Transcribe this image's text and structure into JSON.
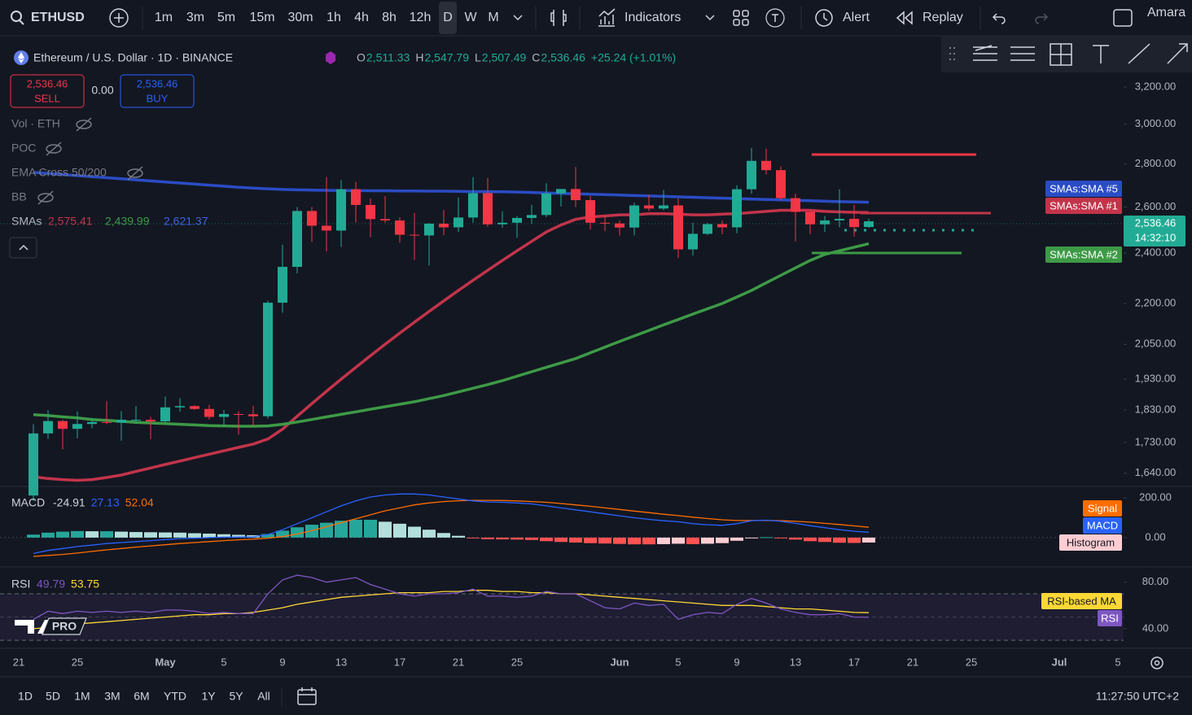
{
  "toolbar": {
    "symbol": "ETHUSD",
    "intervals": [
      "1m",
      "3m",
      "5m",
      "15m",
      "30m",
      "1h",
      "4h",
      "8h",
      "12h",
      "D",
      "W",
      "M"
    ],
    "indicators": "Indicators",
    "alert": "Alert",
    "replay": "Replay",
    "user": "Amara"
  },
  "header": {
    "title": "Ethereum / U.S. Dollar · 1D · BINANCE",
    "ohlc": [
      {
        "key": "O",
        "text": "2,511.33"
      },
      {
        "key": "H",
        "text": "2,547.79"
      },
      {
        "key": "L",
        "text": "2,507.49"
      },
      {
        "key": "C",
        "text": "2,536.46"
      }
    ],
    "change": "+25.24 (+1.01%)"
  },
  "trade": {
    "sell_price": "2,536.46",
    "sell": "SELL",
    "spread": "0.00",
    "buy_price": "2,536.46",
    "buy": "BUY"
  },
  "legend": {
    "vol": "Vol · ETH",
    "poc": "POC",
    "ema": "EMA Cross 50/200",
    "bb": "BB",
    "smas": "SMAs",
    "sma_values": [
      "2,575.41",
      "2,439.99",
      "2,621.37"
    ]
  },
  "logo": "PRO",
  "price": {
    "type": "candlestick",
    "log": true,
    "ylim": [
      1603,
      3268
    ],
    "yticks": [
      {
        "value": 3200,
        "label": "3,200.00"
      },
      {
        "value": 3000,
        "label": "3,000.00"
      },
      {
        "value": 2800,
        "label": "2,800.00"
      },
      {
        "value": 2600,
        "label": "2,600.00"
      },
      {
        "value": 2400,
        "label": "2,400.00"
      },
      {
        "value": 2200,
        "label": "2,200.00"
      },
      {
        "value": 2050,
        "label": "2,050.00"
      },
      {
        "value": 1930,
        "label": "1,930.00"
      },
      {
        "value": 1830,
        "label": "1,830.00"
      },
      {
        "value": 1730,
        "label": "1,730.00"
      },
      {
        "value": 1640,
        "label": "1,640.00"
      }
    ],
    "up_color": "#22ab94",
    "down_color": "#f23645",
    "candles": [
      [
        1578,
        1785,
        1563,
        1757
      ],
      [
        1757,
        1829,
        1740,
        1795
      ],
      [
        1795,
        1799,
        1709,
        1771
      ],
      [
        1771,
        1825,
        1742,
        1786
      ],
      [
        1786,
        1805,
        1773,
        1792
      ],
      [
        1792,
        1858,
        1785,
        1790
      ],
      [
        1790,
        1826,
        1735,
        1799
      ],
      [
        1799,
        1842,
        1788,
        1799
      ],
      [
        1799,
        1808,
        1740,
        1794
      ],
      [
        1794,
        1873,
        1790,
        1838
      ],
      [
        1838,
        1868,
        1824,
        1842
      ],
      [
        1842,
        1845,
        1830,
        1833
      ],
      [
        1833,
        1846,
        1800,
        1808
      ],
      [
        1808,
        1830,
        1780,
        1817
      ],
      [
        1817,
        1826,
        1753,
        1816
      ],
      [
        1816,
        1843,
        1781,
        1810
      ],
      [
        1810,
        2211,
        1803,
        2203
      ],
      [
        2203,
        2436,
        2165,
        2344
      ],
      [
        2344,
        2600,
        2318,
        2582
      ],
      [
        2582,
        2600,
        2448,
        2517
      ],
      [
        2517,
        2738,
        2407,
        2496
      ],
      [
        2496,
        2724,
        2426,
        2681
      ],
      [
        2681,
        2716,
        2531,
        2609
      ],
      [
        2609,
        2639,
        2468,
        2546
      ],
      [
        2546,
        2649,
        2530,
        2540
      ],
      [
        2540,
        2554,
        2444,
        2478
      ],
      [
        2478,
        2573,
        2372,
        2475
      ],
      [
        2475,
        2528,
        2350,
        2526
      ],
      [
        2526,
        2587,
        2476,
        2510
      ],
      [
        2510,
        2643,
        2490,
        2553
      ],
      [
        2553,
        2738,
        2530,
        2663
      ],
      [
        2663,
        2734,
        2512,
        2523
      ],
      [
        2523,
        2580,
        2508,
        2530
      ],
      [
        2530,
        2560,
        2465,
        2551
      ],
      [
        2551,
        2610,
        2526,
        2564
      ],
      [
        2564,
        2709,
        2555,
        2662
      ],
      [
        2662,
        2681,
        2602,
        2682
      ],
      [
        2682,
        2786,
        2600,
        2631
      ],
      [
        2631,
        2650,
        2500,
        2530
      ],
      [
        2530,
        2560,
        2493,
        2527
      ],
      [
        2527,
        2540,
        2474,
        2509
      ],
      [
        2509,
        2620,
        2475,
        2607
      ],
      [
        2607,
        2656,
        2581,
        2593
      ],
      [
        2593,
        2678,
        2585,
        2607
      ],
      [
        2607,
        2638,
        2380,
        2416
      ],
      [
        2416,
        2530,
        2390,
        2482
      ],
      [
        2482,
        2530,
        2476,
        2524
      ],
      [
        2524,
        2540,
        2480,
        2510
      ],
      [
        2510,
        2700,
        2485,
        2681
      ],
      [
        2681,
        2880,
        2660,
        2816
      ],
      [
        2816,
        2876,
        2750,
        2771
      ],
      [
        2771,
        2790,
        2629,
        2640
      ],
      [
        2640,
        2660,
        2450,
        2578
      ],
      [
        2578,
        2580,
        2480,
        2523
      ],
      [
        2523,
        2560,
        2490,
        2540
      ],
      [
        2540,
        2680,
        2510,
        2547
      ],
      [
        2547,
        2610,
        2470,
        2511
      ],
      [
        2511.33,
        2547.79,
        2507.49,
        2536.46
      ]
    ],
    "sma": [
      {
        "name": "SMAs:SMA #1",
        "color": "#c2344a",
        "values": [
          1630,
          1625,
          1622,
          1620,
          1622,
          1628,
          1635,
          1645,
          1655,
          1665,
          1675,
          1685,
          1695,
          1705,
          1715,
          1725,
          1740,
          1770,
          1810,
          1850,
          1890,
          1930,
          1970,
          2010,
          2050,
          2090,
          2130,
          2170,
          2210,
          2250,
          2290,
          2330,
          2370,
          2410,
          2450,
          2490,
          2520,
          2545,
          2555,
          2560,
          2565,
          2565,
          2570,
          2570,
          2568,
          2565,
          2565,
          2568,
          2570,
          2575,
          2580,
          2585,
          2585,
          2585,
          2580,
          2578,
          2576,
          2575.41
        ]
      },
      {
        "name": "SMAs:SMA #2",
        "color": "#3d9a46",
        "values": [
          1815,
          1812,
          1808,
          1805,
          1800,
          1797,
          1794,
          1791,
          1789,
          1787,
          1785,
          1783,
          1781,
          1780,
          1779,
          1779,
          1780,
          1785,
          1792,
          1800,
          1808,
          1816,
          1824,
          1832,
          1840,
          1848,
          1856,
          1866,
          1876,
          1888,
          1900,
          1912,
          1925,
          1940,
          1955,
          1970,
          1985,
          2000,
          2020,
          2040,
          2060,
          2080,
          2100,
          2120,
          2140,
          2160,
          2180,
          2200,
          2225,
          2250,
          2280,
          2310,
          2340,
          2370,
          2395,
          2410,
          2425,
          2439.99
        ]
      },
      {
        "name": "SMAs:SMA #5",
        "color": "#2a4cc4",
        "values": [
          2760,
          2755,
          2750,
          2745,
          2740,
          2735,
          2730,
          2725,
          2720,
          2715,
          2710,
          2705,
          2700,
          2695,
          2690,
          2686,
          2683,
          2680,
          2678,
          2677,
          2676,
          2675,
          2675,
          2674,
          2674,
          2673,
          2673,
          2672,
          2672,
          2671,
          2670,
          2670,
          2669,
          2668,
          2666,
          2664,
          2662,
          2660,
          2658,
          2656,
          2654,
          2652,
          2650,
          2648,
          2646,
          2644,
          2642,
          2640,
          2638,
          2636,
          2634,
          2632,
          2630,
          2628,
          2626,
          2624,
          2623,
          2621.37
        ]
      }
    ],
    "current": {
      "price": "2,536.46",
      "countdown": "14:32:10"
    }
  },
  "macd": {
    "type": "macd",
    "legend": "MACD",
    "legend_values": [
      "-24.91",
      "27.13",
      "52.04"
    ],
    "ylim": [
      -140,
      250
    ],
    "yticks": [
      {
        "value": 200,
        "label": "200.00"
      },
      {
        "value": 0,
        "label": "0.00"
      }
    ],
    "series": [
      {
        "name": "Signal",
        "color": "#ff6d00",
        "values": [
          -95,
          -90,
          -85,
          -78,
          -70,
          -62,
          -55,
          -48,
          -42,
          -36,
          -30,
          -25,
          -20,
          -15,
          -11,
          -8,
          -3,
          5,
          18,
          35,
          55,
          75,
          95,
          115,
          135,
          150,
          165,
          175,
          182,
          186,
          188,
          188,
          187,
          185,
          182,
          178,
          172,
          165,
          158,
          150,
          142,
          134,
          126,
          118,
          111,
          103,
          96,
          90,
          86,
          86,
          86,
          85,
          82,
          78,
          72,
          66,
          59,
          52.04
        ]
      },
      {
        "name": "MACD",
        "color": "#2962ff",
        "values": [
          -80,
          -65,
          -55,
          -45,
          -38,
          -30,
          -25,
          -20,
          -15,
          -10,
          -5,
          -3,
          0,
          2,
          3,
          4,
          15,
          40,
          70,
          100,
          130,
          160,
          185,
          205,
          215,
          220,
          220,
          215,
          205,
          195,
          185,
          180,
          178,
          175,
          170,
          160,
          150,
          140,
          130,
          120,
          110,
          100,
          92,
          85,
          80,
          70,
          65,
          62,
          70,
          85,
          88,
          82,
          72,
          60,
          50,
          40,
          32,
          27.13
        ]
      },
      {
        "name": "Histogram",
        "color": "#ffcdd2",
        "values": [
          15,
          25,
          30,
          33,
          32,
          32,
          30,
          28,
          27,
          26,
          25,
          22,
          20,
          17,
          14,
          12,
          18,
          35,
          52,
          65,
          75,
          85,
          90,
          90,
          80,
          70,
          55,
          40,
          23,
          9,
          -3,
          -8,
          -9,
          -10,
          -12,
          -18,
          -22,
          -25,
          -28,
          -30,
          -32,
          -34,
          -34,
          -33,
          -31,
          -33,
          -31,
          -28,
          -16,
          -1,
          2,
          -3,
          -10,
          -18,
          -22,
          -26,
          -27,
          -24.91
        ]
      }
    ]
  },
  "rsi": {
    "type": "rsi",
    "legend": "RSI",
    "legend_values": [
      "49.79",
      "53.75"
    ],
    "ylim": [
      28,
      91
    ],
    "yticks": [
      {
        "value": 80,
        "label": "80.00"
      },
      {
        "value": 40,
        "label": "40.00"
      }
    ],
    "levels": [
      70,
      50,
      30
    ],
    "series": [
      {
        "name": "RSI-based MA",
        "color": "#fdd835",
        "values": [
          40,
          41,
          43,
          44,
          45,
          46,
          47,
          48,
          49,
          50,
          51,
          52,
          52,
          53,
          53,
          54,
          56,
          58,
          61,
          63,
          65,
          67,
          68,
          69,
          70,
          71,
          71,
          71,
          72,
          72,
          73,
          73,
          72,
          72,
          71,
          71,
          70,
          70,
          69,
          68,
          67,
          66,
          65,
          64,
          63,
          62,
          61,
          60,
          60,
          60,
          59,
          58,
          57,
          57,
          56,
          55,
          54,
          53.75
        ]
      },
      {
        "name": "RSI",
        "color": "#7e57c2",
        "values": [
          48,
          55,
          53,
          55,
          54,
          55,
          54,
          55,
          54,
          56,
          56,
          55,
          53,
          54,
          53,
          53,
          70,
          82,
          86,
          84,
          80,
          82,
          84,
          78,
          74,
          70,
          68,
          70,
          70,
          71,
          74,
          68,
          68,
          67,
          68,
          72,
          70,
          70,
          64,
          58,
          57,
          62,
          60,
          61,
          48,
          52,
          54,
          53,
          61,
          66,
          62,
          57,
          54,
          52,
          52,
          53,
          50,
          49.79
        ]
      }
    ]
  },
  "time_axis": {
    "labels": [
      "21",
      "25",
      "May",
      "5",
      "9",
      "13",
      "17",
      "21",
      "25",
      "Jun",
      "5",
      "9",
      "13",
      "17",
      "21",
      "25",
      "Jul",
      "5"
    ]
  },
  "bottom": {
    "ranges": [
      "1D",
      "5D",
      "1M",
      "3M",
      "6M",
      "YTD",
      "1Y",
      "5Y",
      "All"
    ],
    "clock": "11:27:50 UTC+2"
  }
}
